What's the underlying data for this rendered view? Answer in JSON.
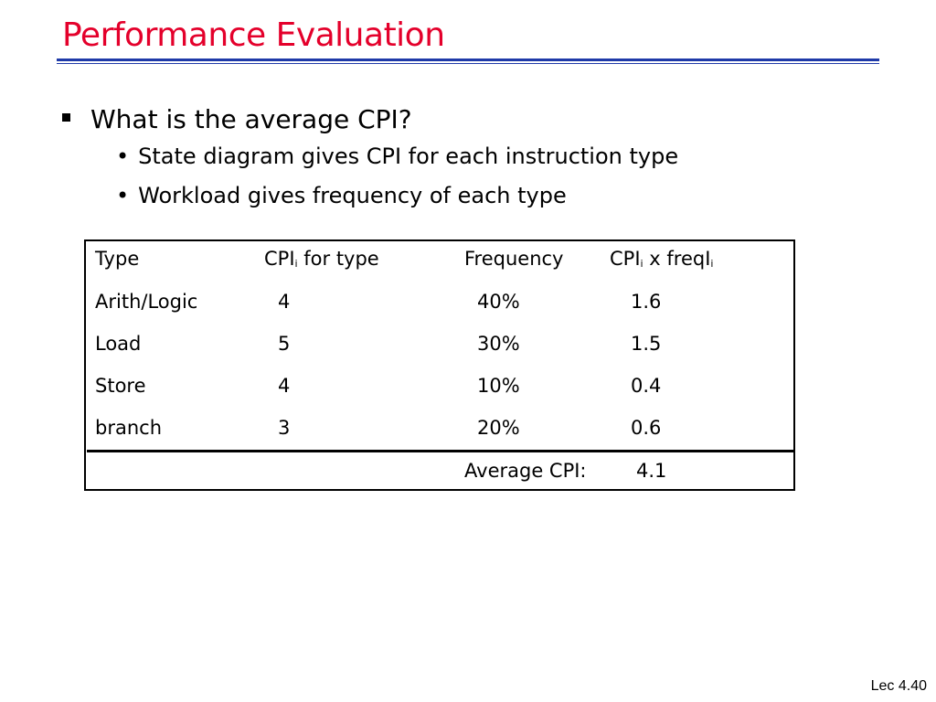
{
  "slide": {
    "title": "Performance Evaluation",
    "bullet_main": "What is the average CPI?",
    "sub_bullets": [
      "State diagram gives CPI for each instruction type",
      "Workload gives frequency of each type"
    ],
    "footer": "Lec 4.40"
  },
  "table": {
    "headers": {
      "type": "Type",
      "cpi_pre": "CPI",
      "cpi_sub": "i",
      "cpi_post": " for type",
      "freq": "Frequency",
      "prod_pre": "CPI",
      "prod_sub1": "i",
      "prod_mid": " x freqI",
      "prod_sub2": "i"
    },
    "rows": [
      {
        "type": "Arith/Logic",
        "cpi": "4",
        "freq": "40%",
        "product": "1.6"
      },
      {
        "type": "Load",
        "cpi": "5",
        "freq": "30%",
        "product": "1.5"
      },
      {
        "type": "Store",
        "cpi": "4",
        "freq": "10%",
        "product": "0.4"
      },
      {
        "type": "branch",
        "cpi": "3",
        "freq": "20%",
        "product": "0.6"
      }
    ],
    "average_label": "Average CPI:",
    "average_value": "4.1"
  }
}
